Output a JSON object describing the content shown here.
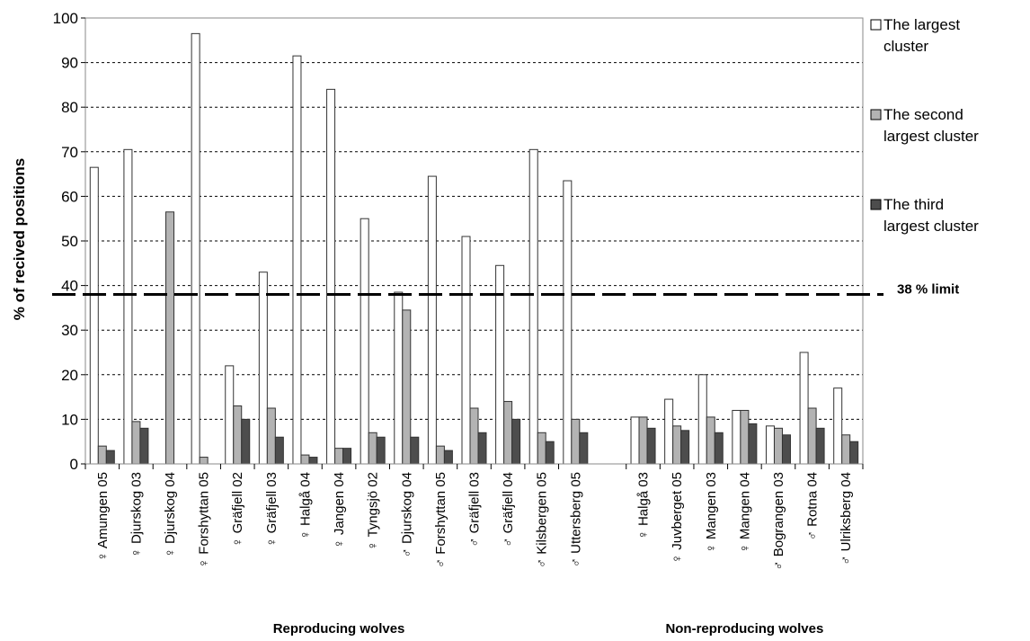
{
  "chart_data": {
    "type": "bar",
    "ylabel": "% of recived positions",
    "ylim": [
      0,
      100
    ],
    "yticks": [
      0,
      10,
      20,
      30,
      40,
      50,
      60,
      70,
      80,
      90,
      100
    ],
    "grid": "horizontal dotted",
    "legend_position": "right",
    "categories": [
      "♀ Amungen 05",
      "♀ Djurskog 03",
      "♀ Djurskog 04",
      "♀ Forshyttan 05",
      "♀ Gräfjell 02",
      "♀ Gräfjell 03",
      "♀ Halgå 04",
      "♀ Jangen 04",
      "♀ Tyngsjö 02",
      "♂ Djurskog 04",
      "♂ Forshyttan 05",
      "♂ Gräfjell 03",
      "♂ Gräfjell 04",
      "♂ Kilsbergen 05",
      "♂ Uttersberg 05",
      "♀ Halgå 03",
      "♀ Juvberget 05",
      "♀ Mangen 03",
      "♀ Mangen 04",
      "♂ Bograngen 03",
      "♂ Rotna 04",
      "♂ Ulriksberg 04"
    ],
    "series": [
      {
        "name": "The largest cluster",
        "color": "#ffffff",
        "values": [
          66.5,
          70.5,
          0,
          96.5,
          22,
          43,
          91.5,
          84,
          55,
          38.5,
          64.5,
          51,
          44.5,
          70.5,
          63.5,
          10.5,
          14.5,
          20,
          12,
          8.5,
          25,
          17
        ]
      },
      {
        "name": "The second largest cluster",
        "color": "#b3b3b3",
        "values": [
          4,
          9.5,
          56.5,
          1.5,
          13,
          12.5,
          2,
          3.5,
          7,
          34.5,
          4,
          12.5,
          14,
          7,
          10,
          10.5,
          8.5,
          10.5,
          12,
          8,
          12.5,
          6.5
        ]
      },
      {
        "name": "The third largest cluster",
        "color": "#4d4d4d",
        "values": [
          3,
          8,
          0,
          0,
          10,
          6,
          1.5,
          3.5,
          6,
          6,
          3,
          7,
          10,
          5,
          7,
          8,
          7.5,
          7,
          9,
          6.5,
          8,
          5
        ]
      }
    ],
    "groups": [
      {
        "label": "Reproducing wolves",
        "count": 15
      },
      {
        "label": "Non-reproducing wolves",
        "count": 7
      }
    ],
    "reference_line": {
      "value": 38,
      "label": "38 % limit"
    }
  }
}
